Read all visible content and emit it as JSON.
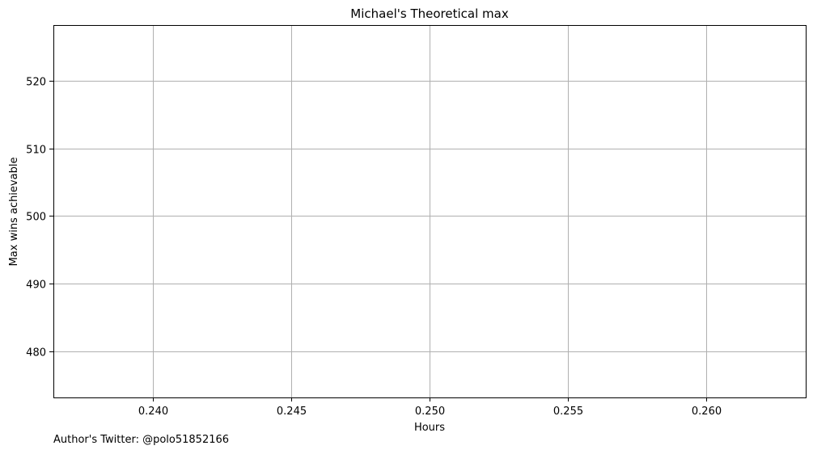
{
  "chart_data": {
    "type": "line",
    "title": "Michael's Theoretical max",
    "xlabel": "Hours",
    "ylabel": "Max wins achievable",
    "xlim": [
      0.2364,
      0.2636
    ],
    "ylim": [
      473.2,
      528.2
    ],
    "xticks": [
      0.24,
      0.245,
      0.25,
      0.255,
      0.26
    ],
    "xtick_labels": [
      "0.240",
      "0.245",
      "0.250",
      "0.255",
      "0.260"
    ],
    "yticks": [
      480,
      490,
      500,
      510,
      520
    ],
    "ytick_labels": [
      "480",
      "490",
      "500",
      "510",
      "520"
    ],
    "grid": true,
    "series": [
      {
        "name": "Max wins achievable",
        "x": [],
        "y": []
      }
    ]
  },
  "footnote": "Author's Twitter: @polo51852166",
  "colors": {
    "grid": "#b0b0b0",
    "axis": "#000000",
    "background": "#ffffff"
  }
}
